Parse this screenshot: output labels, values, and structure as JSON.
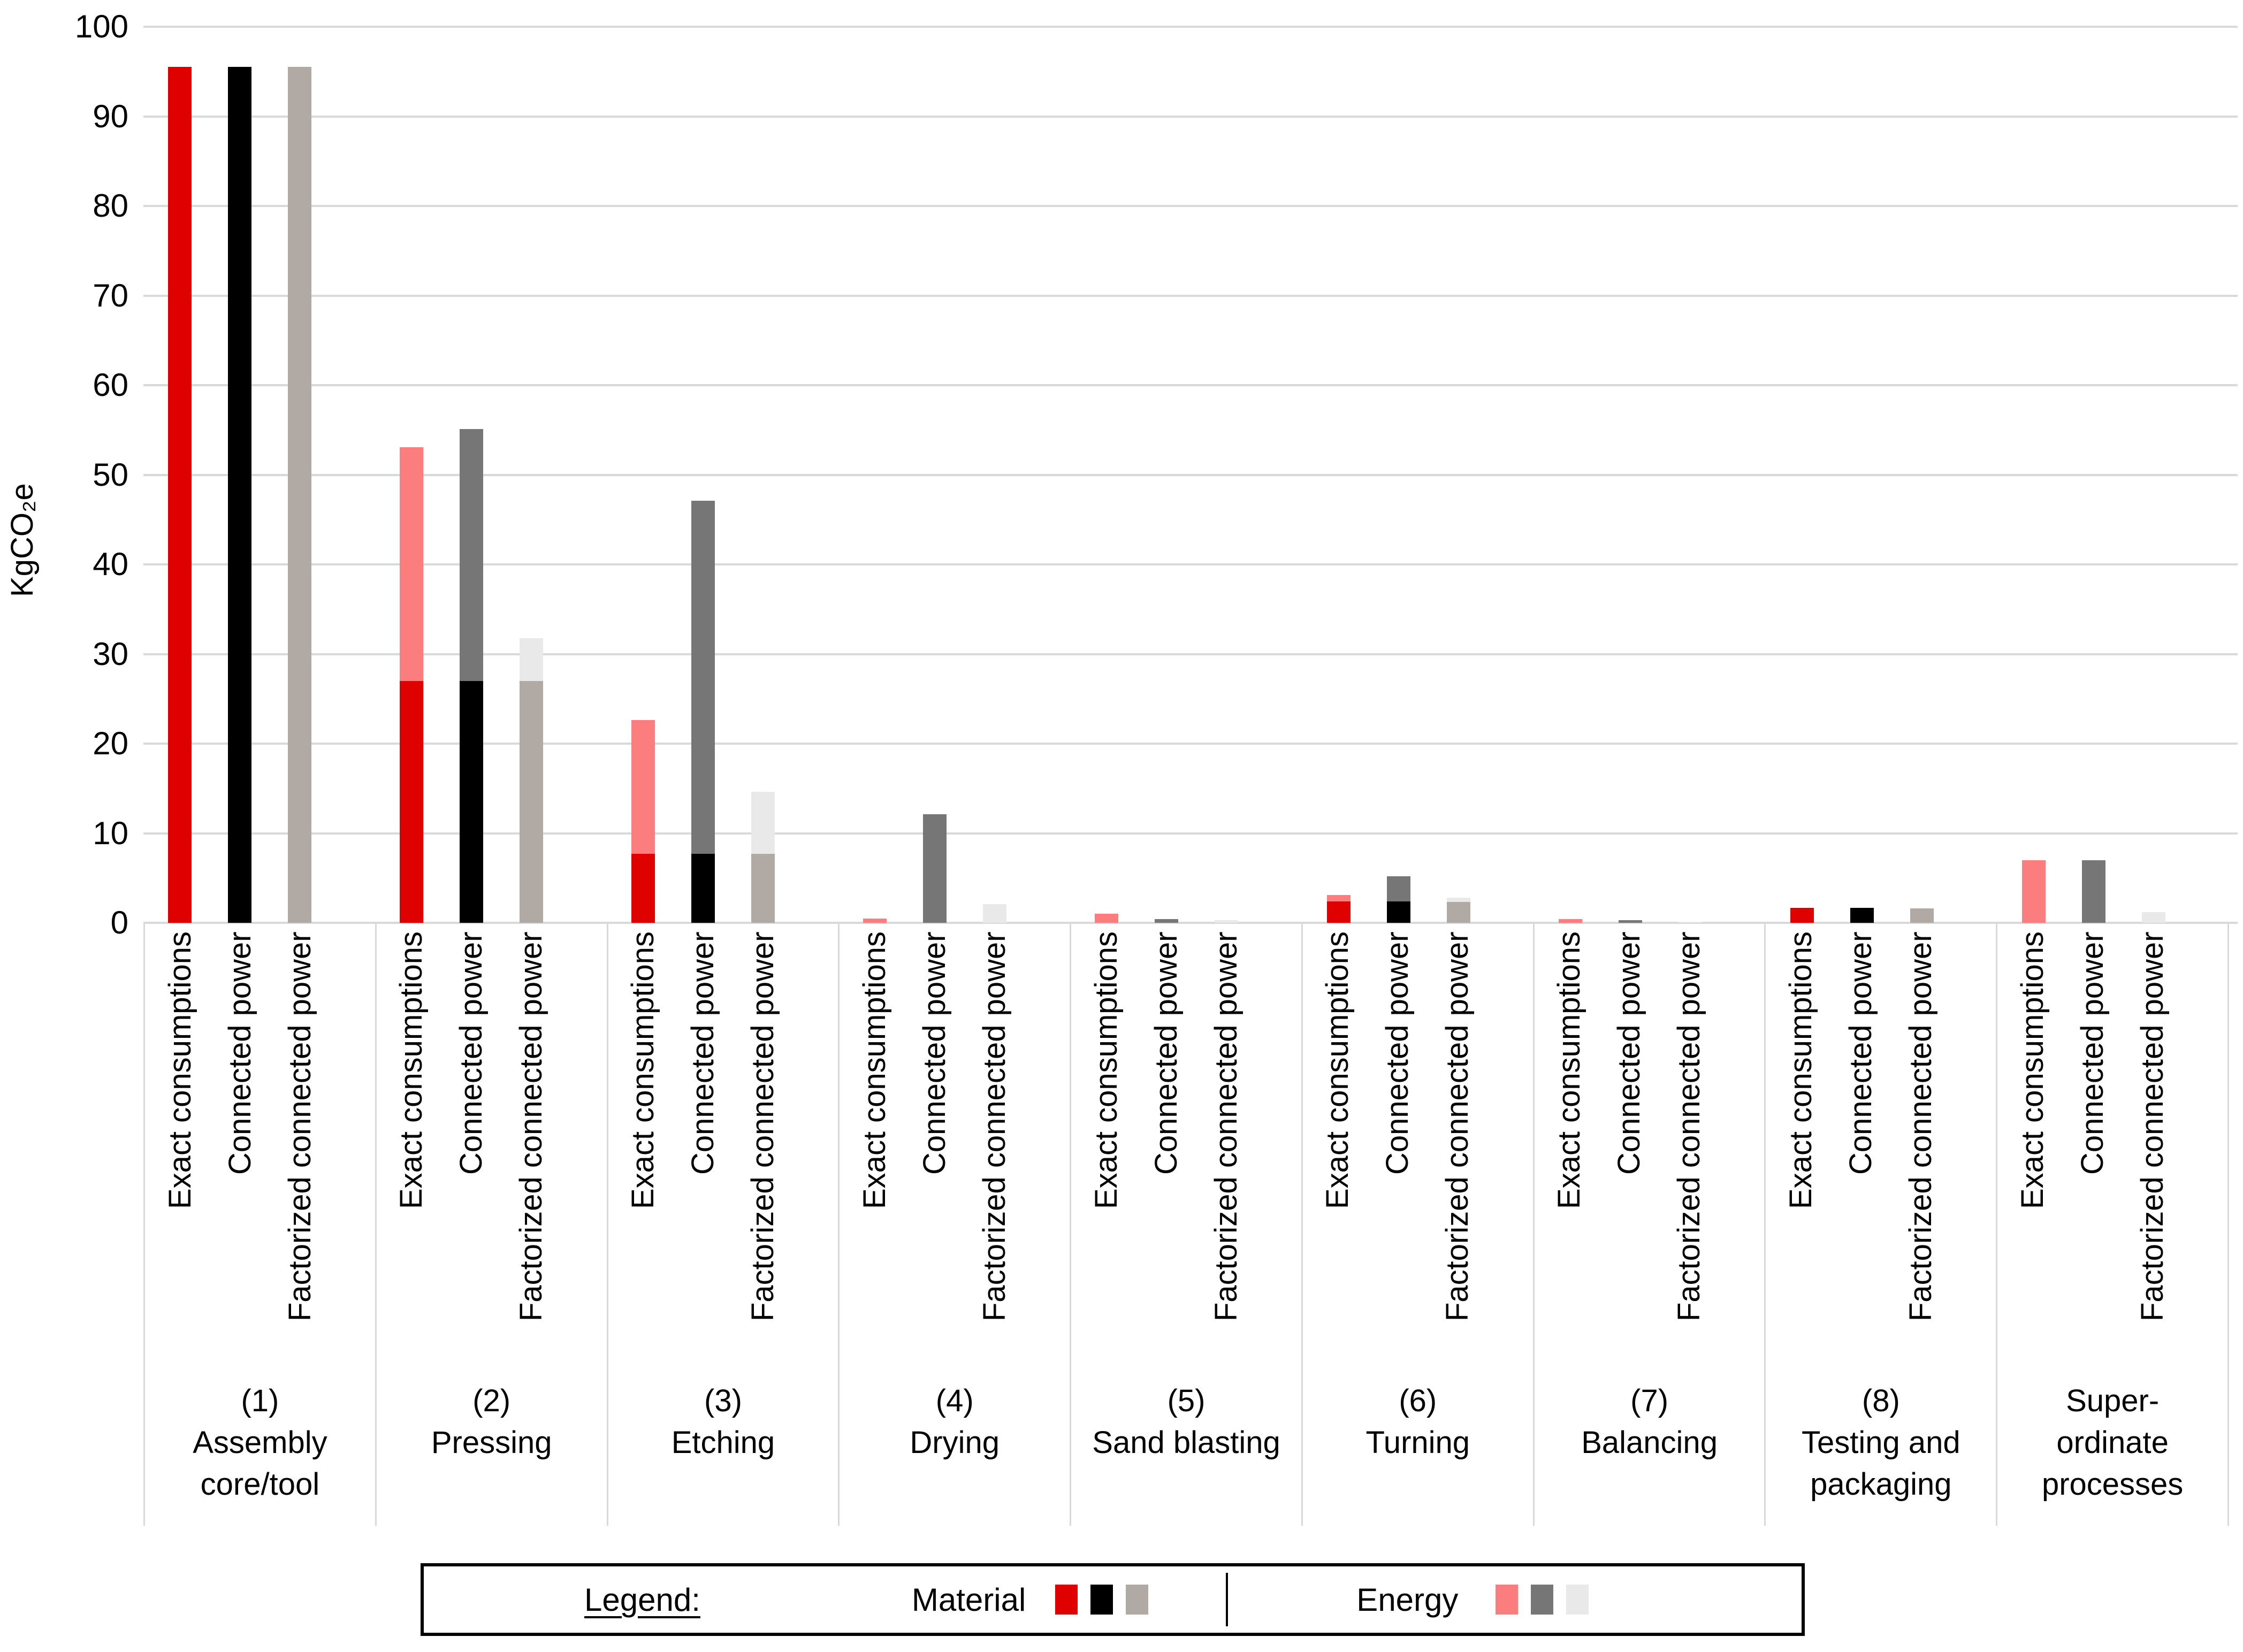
{
  "chart_data": {
    "type": "bar",
    "stacked": true,
    "ylabel": "KgCO₂e",
    "ylim": [
      0,
      100
    ],
    "yticks": [
      0,
      10,
      20,
      30,
      40,
      50,
      60,
      70,
      80,
      90,
      100
    ],
    "grid": "horizontal",
    "unit": "KgCO2e",
    "bar_labels": [
      "Exact consumptions",
      "Connected power",
      "Factorized connected power"
    ],
    "stack_components": [
      "Material",
      "Energy"
    ],
    "groups": [
      {
        "caption_lines": [
          "(1)",
          "Assembly",
          "core/tool"
        ],
        "bars": [
          {
            "material": 95.5,
            "energy": 0
          },
          {
            "material": 95.5,
            "energy": 0
          },
          {
            "material": 95.5,
            "energy": 0
          }
        ]
      },
      {
        "caption_lines": [
          "(2)",
          "Pressing"
        ],
        "bars": [
          {
            "material": 27.0,
            "energy": 26.1
          },
          {
            "material": 27.0,
            "energy": 28.1
          },
          {
            "material": 27.0,
            "energy": 4.8
          }
        ]
      },
      {
        "caption_lines": [
          "(3)",
          "Etching"
        ],
        "bars": [
          {
            "material": 7.7,
            "energy": 14.9
          },
          {
            "material": 7.7,
            "energy": 39.4
          },
          {
            "material": 7.7,
            "energy": 6.9
          }
        ]
      },
      {
        "caption_lines": [
          "(4)",
          "Drying"
        ],
        "bars": [
          {
            "material": 0,
            "energy": 0.5
          },
          {
            "material": 0,
            "energy": 12.1
          },
          {
            "material": 0,
            "energy": 2.1
          }
        ]
      },
      {
        "caption_lines": [
          "(5)",
          "Sand blasting"
        ],
        "bars": [
          {
            "material": 0,
            "energy": 1.0
          },
          {
            "material": 0,
            "energy": 0.4
          },
          {
            "material": 0,
            "energy": 0.3
          }
        ]
      },
      {
        "caption_lines": [
          "(6)",
          "Turning"
        ],
        "bars": [
          {
            "material": 2.4,
            "energy": 0.7
          },
          {
            "material": 2.4,
            "energy": 2.8
          },
          {
            "material": 2.3,
            "energy": 0.5
          }
        ]
      },
      {
        "caption_lines": [
          "(7)",
          "Balancing"
        ],
        "bars": [
          {
            "material": 0,
            "energy": 0.4
          },
          {
            "material": 0,
            "energy": 0.3
          },
          {
            "material": 0,
            "energy": 0.1
          }
        ]
      },
      {
        "caption_lines": [
          "(8)",
          "Testing and",
          "packaging"
        ],
        "bars": [
          {
            "material": 1.7,
            "energy": 0
          },
          {
            "material": 1.7,
            "energy": 0
          },
          {
            "material": 1.6,
            "energy": 0
          }
        ]
      },
      {
        "caption_lines": [
          "Super-",
          "ordinate",
          "processes"
        ],
        "bars": [
          {
            "material": 0,
            "energy": 7.0
          },
          {
            "material": 0,
            "energy": 7.0
          },
          {
            "material": 0,
            "energy": 1.2
          }
        ]
      }
    ]
  },
  "colors": {
    "material": [
      "#df0000",
      "#000000",
      "#b1aaa4"
    ],
    "energy": [
      "#fc7d7d",
      "#767676",
      "#e9e9e9"
    ],
    "gridline": "#d9d9d9",
    "separator": "#d9d9d9",
    "legend_border": "#000000"
  },
  "legend": {
    "title": "Legend:",
    "material_label": "Material",
    "energy_label": "Energy"
  }
}
